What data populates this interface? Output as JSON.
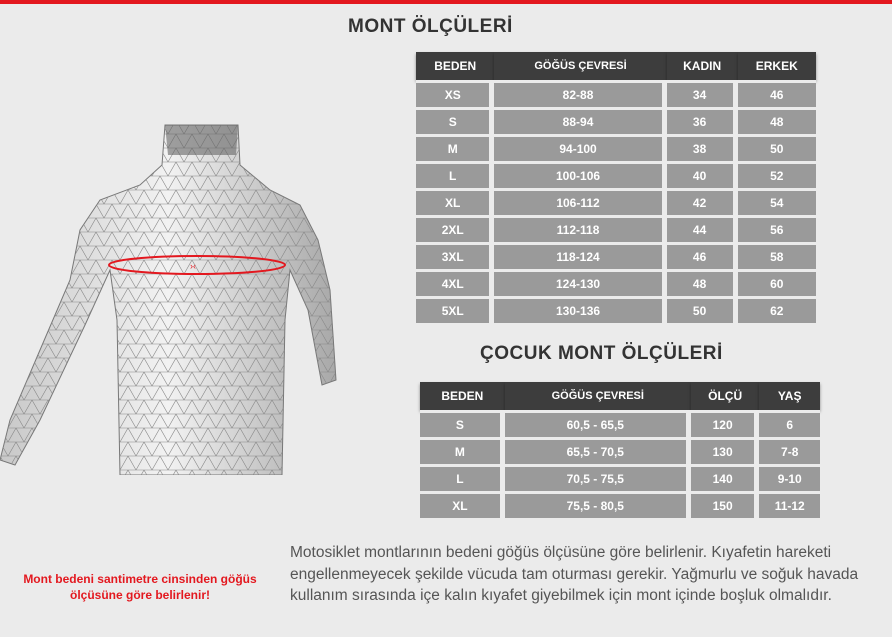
{
  "colors": {
    "accent": "#e3181f",
    "header_bg": "#3d3d3d",
    "cell_bg": "#9a9a9a"
  },
  "adult": {
    "title": "MONT ÖLÇÜLERİ",
    "headers": [
      "BEDEN",
      "GÖĞÜS ÇEVRESİ",
      "KADIN",
      "ERKEK"
    ],
    "rows": [
      [
        "XS",
        "82-88",
        "34",
        "46"
      ],
      [
        "S",
        "88-94",
        "36",
        "48"
      ],
      [
        "M",
        "94-100",
        "38",
        "50"
      ],
      [
        "L",
        "100-106",
        "40",
        "52"
      ],
      [
        "XL",
        "106-112",
        "42",
        "54"
      ],
      [
        "2XL",
        "112-118",
        "44",
        "56"
      ],
      [
        "3XL",
        "118-124",
        "46",
        "58"
      ],
      [
        "4XL",
        "124-130",
        "48",
        "60"
      ],
      [
        "5XL",
        "130-136",
        "50",
        "62"
      ]
    ]
  },
  "child": {
    "title": "ÇOCUK MONT ÖLÇÜLERİ",
    "headers": [
      "BEDEN",
      "GÖĞÜS ÇEVRESİ",
      "ÖLÇÜ",
      "YAŞ"
    ],
    "rows": [
      [
        "S",
        "60,5 - 65,5",
        "120",
        "6"
      ],
      [
        "M",
        "65,5 - 70,5",
        "130",
        "7-8"
      ],
      [
        "L",
        "70,5 - 75,5",
        "140",
        "9-10"
      ],
      [
        "XL",
        "75,5 - 80,5",
        "150",
        "11-12"
      ]
    ]
  },
  "note": "Mont bedeni santimetre cinsinden göğüs ölçüsüne göre belirlenir!",
  "description": "Motosiklet montlarının bedeni göğüs ölçüsüne göre belirlenir. Kıyafetin hareketi engellenmeyecek şekilde vücuda tam oturması gerekir. Yağmurlu ve soğuk havada kullanım sırasında içe kalın kıyafet giyebilmek için mont içinde boşluk olmalıdır."
}
